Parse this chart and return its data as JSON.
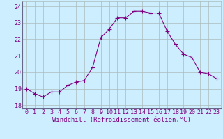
{
  "x": [
    0,
    1,
    2,
    3,
    4,
    5,
    6,
    7,
    8,
    9,
    10,
    11,
    12,
    13,
    14,
    15,
    16,
    17,
    18,
    19,
    20,
    21,
    22,
    23
  ],
  "y": [
    19.0,
    18.7,
    18.5,
    18.8,
    18.8,
    19.2,
    19.4,
    19.5,
    20.3,
    22.1,
    22.6,
    23.3,
    23.3,
    23.7,
    23.7,
    23.6,
    23.6,
    22.5,
    21.7,
    21.1,
    20.9,
    20.0,
    19.9,
    19.6
  ],
  "line_color": "#800080",
  "marker": "+",
  "marker_size": 4,
  "bg_color": "#cceeff",
  "grid_color": "#aabbbb",
  "xlabel": "Windchill (Refroidissement éolien,°C)",
  "xlim": [
    -0.5,
    23.5
  ],
  "ylim": [
    17.8,
    24.3
  ],
  "yticks": [
    18,
    19,
    20,
    21,
    22,
    23,
    24
  ],
  "xticks": [
    0,
    1,
    2,
    3,
    4,
    5,
    6,
    7,
    8,
    9,
    10,
    11,
    12,
    13,
    14,
    15,
    16,
    17,
    18,
    19,
    20,
    21,
    22,
    23
  ],
  "label_color": "#800080",
  "tick_color": "#800080",
  "font_size": 6.0,
  "xlabel_font_size": 6.5
}
